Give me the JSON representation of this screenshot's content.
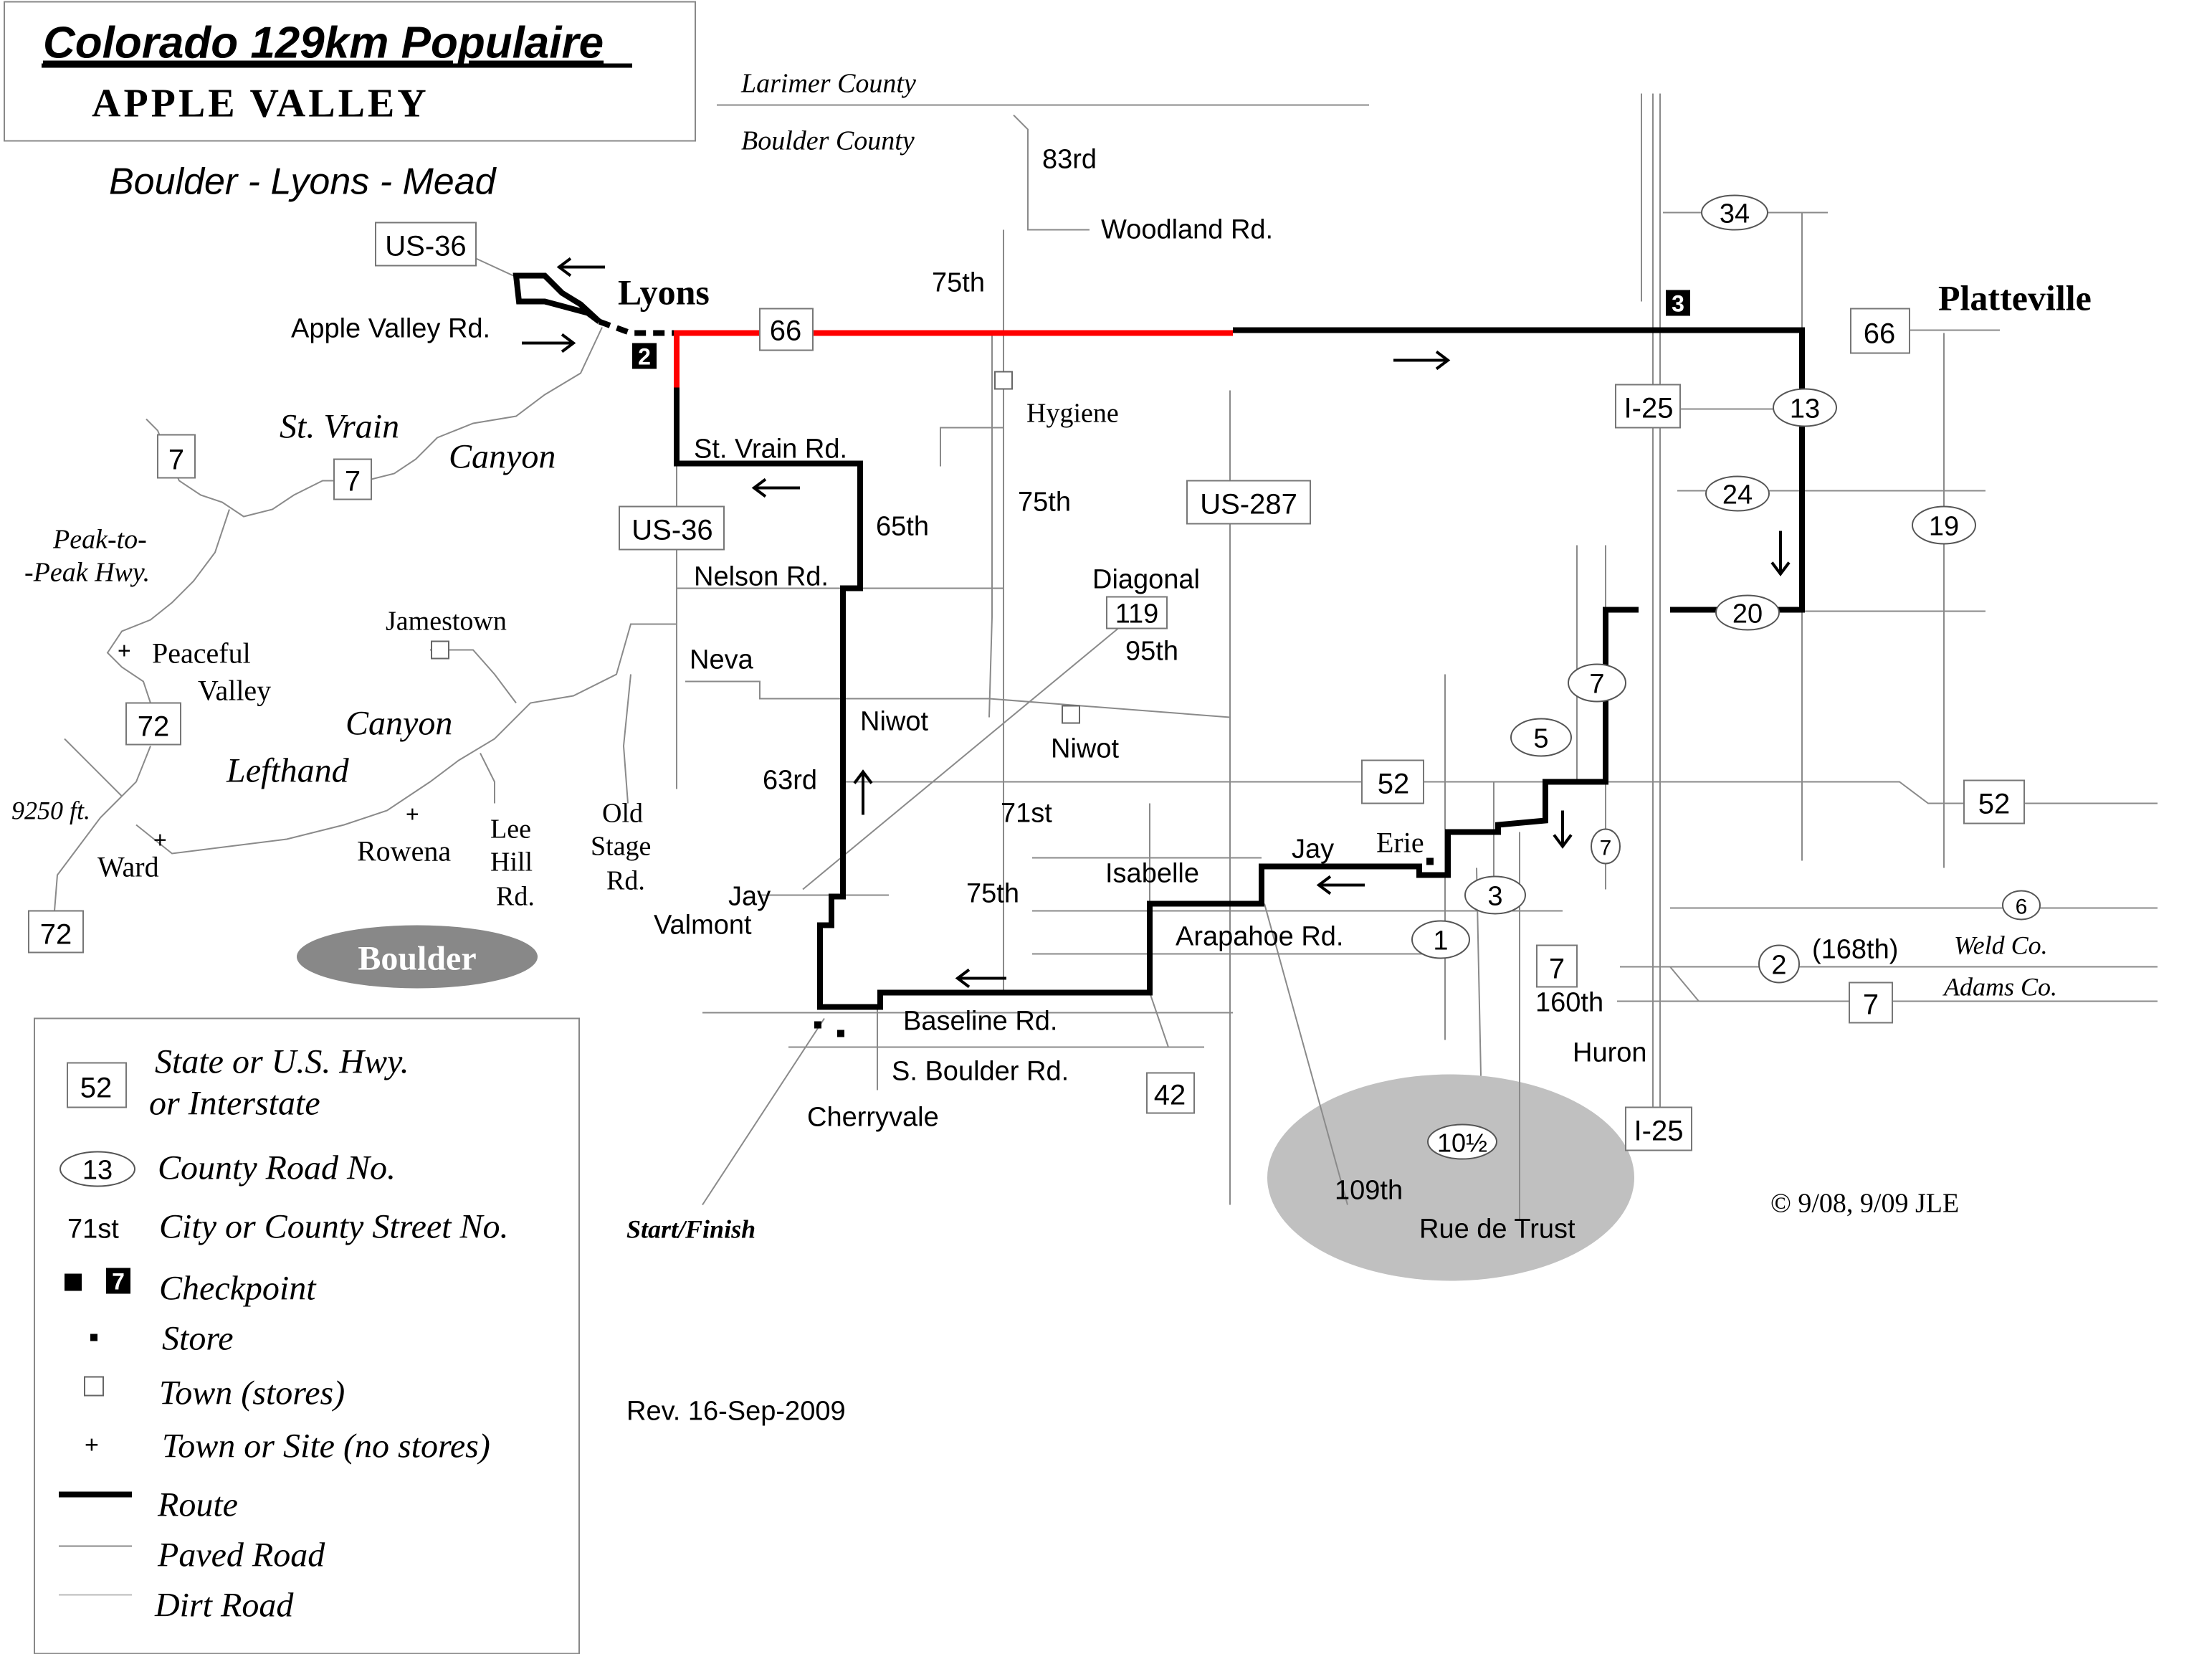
{
  "title": "Colorado 129km Populaire",
  "subtitle": "APPLE VALLEY",
  "region": "Boulder - Lyons - Mead",
  "counties": {
    "larimer": "Larimer County",
    "boulder": "Boulder County",
    "weld": "Weld Co.",
    "adams": "Adams Co."
  },
  "towns": {
    "lyons": "Lyons",
    "platteville": "Platteville",
    "hygiene": "Hygiene",
    "jamestown": "Jamestown",
    "peaceful": "Peaceful",
    "valley": "Valley",
    "ward": "Ward",
    "rowena": "Rowena",
    "erie": "Erie",
    "boulder": "Boulder"
  },
  "features": {
    "st_vrain": "St. Vrain",
    "canyon1": "Canyon",
    "peak1": "Peak-to-",
    "peak2": "-Peak Hwy.",
    "canyon2": "Canyon",
    "lefthand": "Lefthand",
    "lee": "Lee",
    "hill": "Hill",
    "lee_rd": "Rd.",
    "old": "Old",
    "stage": "Stage",
    "old_rd": "Rd.",
    "elevation": "9250 ft."
  },
  "streets": {
    "s83rd": "83rd",
    "woodland": "Woodland Rd.",
    "s75th_a": "75th",
    "apple_valley": "Apple Valley Rd.",
    "st_vrain_rd": "St. Vrain Rd.",
    "s65th": "65th",
    "s75th_b": "75th",
    "nelson": "Nelson Rd.",
    "diagonal": "Diagonal",
    "s95th": "95th",
    "neva": "Neva",
    "niwot_rd": "Niwot",
    "niwot_town": "Niwot",
    "s63rd": "63rd",
    "s71st": "71st",
    "isabelle": "Isabelle",
    "s75th_c": "75th",
    "jay_a": "Jay",
    "valmont": "Valmont",
    "jay_b": "Jay",
    "arapahoe": "Arapahoe Rd.",
    "baseline": "Baseline Rd.",
    "s_boulder": "S. Boulder Rd.",
    "cherryvale": "Cherryvale",
    "s168th": "(168th)",
    "s160th": "160th",
    "huron": "Huron",
    "s109th": "109th",
    "rue_de_trust": "Rue de Trust"
  },
  "highway_shields": [
    "US-36",
    "66",
    "7",
    "7",
    "US-36",
    "US-287",
    "119",
    "72",
    "72",
    "I-25",
    "66",
    "52",
    "52",
    "42",
    "7",
    "7",
    "I-25"
  ],
  "county_road_shields": [
    "34",
    "13",
    "24",
    "19",
    "20",
    "7",
    "5",
    "7",
    "3",
    "1",
    "6",
    "2",
    "10½"
  ],
  "checkpoints": [
    "2",
    "3"
  ],
  "start_finish": "Start/Finish",
  "revision": "Rev. 16-Sep-2009",
  "copyright": "© 9/08, 9/09 JLE",
  "legend": {
    "hwy_sample": "52",
    "hwy1": "State or U.S. Hwy.",
    "hwy2": "or Interstate",
    "county_sample": "13",
    "county": "County Road No.",
    "street_sample": "71st",
    "street": "City or County Street No.",
    "checkpoint_sample": "7",
    "checkpoint": "Checkpoint",
    "store": "Store",
    "town_stores": "Town (stores)",
    "town_nostores": "Town or Site (no stores)",
    "route": "Route",
    "paved": "Paved Road",
    "dirt": "Dirt Road"
  },
  "colors": {
    "route": "#000000",
    "route_highlight": "#ff0000",
    "road": "#8a8a8a",
    "area_fill": "#c0c0c0",
    "boulder_fill": "#888888"
  }
}
